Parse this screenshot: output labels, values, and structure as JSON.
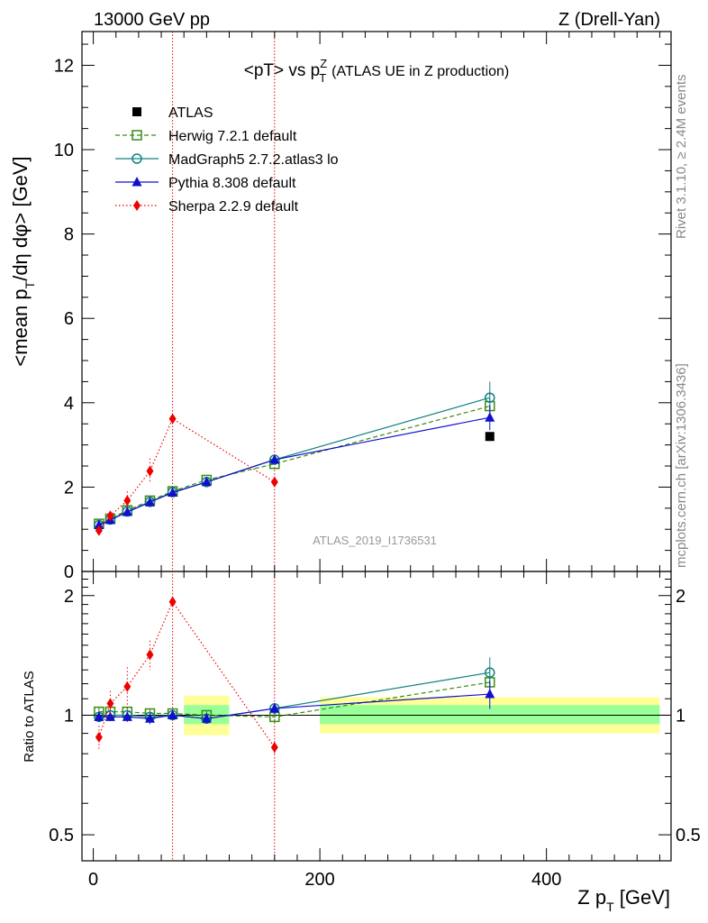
{
  "header": {
    "left": "13000 GeV pp",
    "right": "Z (Drell-Yan)"
  },
  "chart_data": {
    "type": "line",
    "title": "<pT> vs p_T^Z (ATLAS UE in Z production)",
    "title_main": "<pT> vs p",
    "title_sup": "Z",
    "title_sub": "T",
    "title_rest": "(ATLAS UE in Z production)",
    "ylabel": "<mean p_T/dη dφ> [GeV]",
    "ylabel_parts": {
      "a": "<mean p",
      "sub": "T",
      "b": "/dη dφ> [GeV]"
    },
    "ratio_ylabel": "Ratio to ATLAS",
    "xlabel": "Z p_T [GeV]",
    "xlabel_parts": {
      "a": "Z p",
      "sub": "T",
      "b": " [GeV]"
    },
    "xlim": [
      -10,
      510
    ],
    "ylim": [
      0,
      12.8
    ],
    "ratio_ylim": [
      0.43,
      2.3
    ],
    "x_ticks": [
      0,
      200,
      400
    ],
    "y_ticks": [
      0,
      2,
      4,
      6,
      8,
      10,
      12
    ],
    "ratio_ticks": [
      0.5,
      1,
      2
    ],
    "ratio_tick_labels": [
      "0.5",
      "1",
      "2"
    ],
    "vertical_lines": [
      70,
      160
    ],
    "watermark": "ATLAS_2019_I1736531",
    "side_label_rivet": "Rivet 3.1.10, ≥ 2.4M events",
    "side_label_mcplots": "mcplots.cern.ch [arXiv:1306.3436]",
    "data": {
      "name": "ATLAS",
      "points": [
        [
          350,
          3.2
        ]
      ]
    },
    "uncertainty_bands": [
      {
        "x": [
          80,
          120
        ],
        "inner": [
          0.95,
          1.06
        ],
        "outer": [
          0.89,
          1.12
        ]
      },
      {
        "x": [
          200,
          500
        ],
        "inner": [
          0.95,
          1.06
        ],
        "outer": [
          0.9,
          1.11
        ]
      }
    ],
    "series": [
      {
        "name": "Herwig 7.2.1 default",
        "color": "#3a8c12",
        "dash": "5,3",
        "marker": "open-square",
        "x": [
          5,
          15,
          30,
          50,
          70,
          100,
          160,
          350
        ],
        "y": [
          1.13,
          1.25,
          1.45,
          1.68,
          1.9,
          2.17,
          2.55,
          3.92
        ],
        "yerr": [
          0.03,
          0.03,
          0.04,
          0.05,
          0.05,
          0.06,
          0.08,
          0.35
        ],
        "ratio": [
          1.02,
          1.02,
          1.02,
          1.01,
          1.01,
          1.0,
          0.99,
          1.21
        ]
      },
      {
        "name": "MadGraph5 2.7.2.atlas3 lo",
        "color": "#138080",
        "dash": "",
        "marker": "open-circle",
        "x": [
          5,
          15,
          30,
          50,
          70,
          100,
          160,
          350
        ],
        "y": [
          1.1,
          1.23,
          1.42,
          1.65,
          1.88,
          2.12,
          2.65,
          4.12
        ],
        "yerr": [
          0.03,
          0.03,
          0.04,
          0.05,
          0.05,
          0.06,
          0.08,
          0.38
        ],
        "ratio": [
          0.99,
          1.0,
          1.0,
          0.99,
          1.0,
          0.98,
          1.04,
          1.28
        ]
      },
      {
        "name": "Pythia 8.308 default",
        "color": "#1010cc",
        "dash": "",
        "marker": "filled-triangle",
        "x": [
          5,
          15,
          30,
          50,
          70,
          100,
          160,
          350
        ],
        "y": [
          1.1,
          1.22,
          1.41,
          1.64,
          1.87,
          2.12,
          2.65,
          3.65
        ],
        "yerr": [
          0.03,
          0.03,
          0.04,
          0.05,
          0.05,
          0.06,
          0.08,
          0.3
        ],
        "ratio": [
          0.99,
          0.99,
          0.99,
          0.98,
          1.0,
          0.98,
          1.04,
          1.13
        ]
      },
      {
        "name": "Sherpa 2.2.9 default",
        "color": "#ee0000",
        "dash": "1.5,2.5",
        "marker": "filled-diamond",
        "x": [
          5,
          15,
          30,
          50,
          70,
          160
        ],
        "y": [
          0.97,
          1.32,
          1.68,
          2.38,
          3.62,
          2.12
        ],
        "yerr": [
          0.08,
          0.1,
          0.22,
          0.3,
          0.0,
          0.05
        ],
        "ratio": [
          0.88,
          1.07,
          1.18,
          1.42,
          1.93,
          0.83
        ],
        "ratio_err": [
          0.06,
          0.08,
          0.14,
          0.12,
          0.0,
          0.03
        ]
      }
    ],
    "legend_position": "top-left"
  }
}
